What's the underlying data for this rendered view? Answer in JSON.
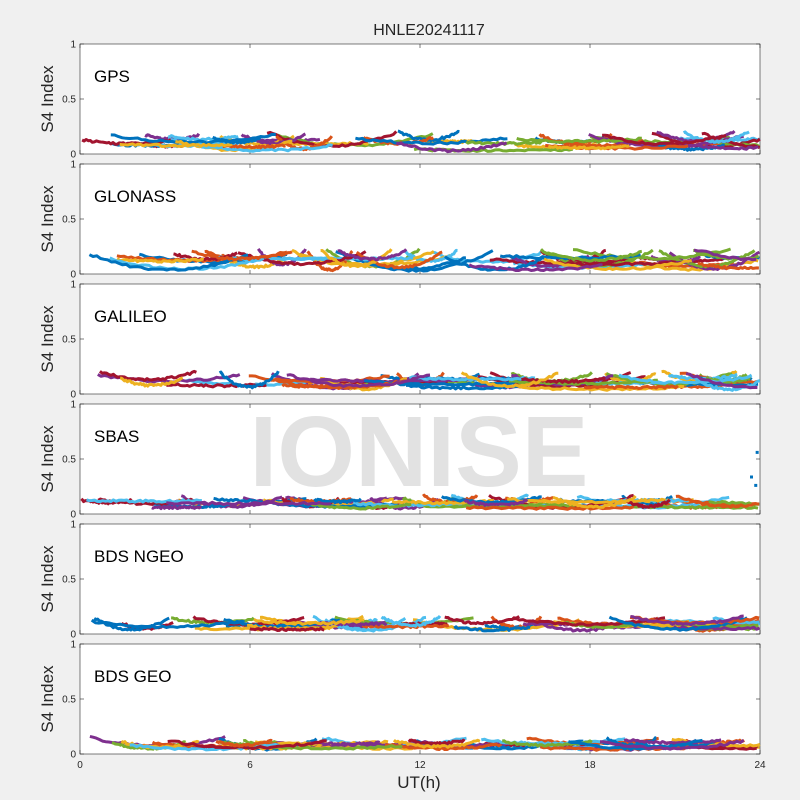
{
  "chart_data": {
    "type": "scatter",
    "title": "HNLE20241117",
    "xlabel": "UT(h)",
    "ylabel": "S4 Index",
    "xlim": [
      0,
      24
    ],
    "ylim": [
      0,
      1
    ],
    "xticks": [
      "0",
      "6",
      "12",
      "18",
      "24"
    ],
    "yticks": [
      "0",
      "0.5",
      "1"
    ],
    "watermark": "IONISE",
    "series_colors": [
      "#0072bd",
      "#d95319",
      "#edb120",
      "#7e2f8e",
      "#77ac30",
      "#4dbeee",
      "#a2142f"
    ],
    "panels": [
      {
        "label": "GPS",
        "typical_s4_range": [
          0.03,
          0.22
        ],
        "peak_s4": 0.22
      },
      {
        "label": "GLONASS",
        "typical_s4_range": [
          0.03,
          0.24
        ],
        "peak_s4": 0.24
      },
      {
        "label": "GALILEO",
        "typical_s4_range": [
          0.04,
          0.22
        ],
        "peak_s4": 0.22
      },
      {
        "label": "SBAS",
        "typical_s4_range": [
          0.05,
          0.18
        ],
        "peak_s4": 0.56
      },
      {
        "label": "BDS NGEO",
        "typical_s4_range": [
          0.03,
          0.17
        ],
        "peak_s4": 0.17
      },
      {
        "label": "BDS GEO",
        "typical_s4_range": [
          0.04,
          0.16
        ],
        "peak_s4": 0.16
      }
    ]
  }
}
